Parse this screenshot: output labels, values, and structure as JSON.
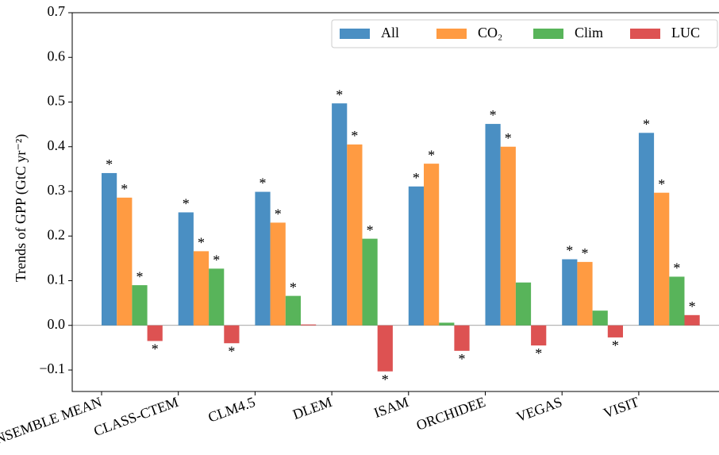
{
  "chart_data": {
    "type": "bar",
    "ylabel": "Trends of GPP (GtC yr⁻²)",
    "categories": [
      "ENSEMBLE MEAN",
      "CLASS-CTEM",
      "CLM4.5",
      "DLEM",
      "ISAM",
      "ORCHIDEE",
      "VEGAS",
      "VISIT"
    ],
    "series": [
      {
        "name": "All",
        "color": "#4a8fc3",
        "values": [
          0.341,
          0.253,
          0.299,
          0.497,
          0.311,
          0.451,
          0.148,
          0.431
        ],
        "labels": [
          "*",
          "*",
          "*",
          "*",
          "*",
          "*",
          "*",
          "*"
        ]
      },
      {
        "name": "CO₂",
        "color": "#ff9b42",
        "values": [
          0.286,
          0.166,
          0.23,
          0.405,
          0.362,
          0.4,
          0.142,
          0.297
        ],
        "labels": [
          "*",
          "*",
          "*",
          "*",
          "*",
          "*",
          "*",
          "*"
        ]
      },
      {
        "name": "Clim",
        "color": "#58b45a",
        "values": [
          0.09,
          0.127,
          0.066,
          0.194,
          0.006,
          0.096,
          0.033,
          0.109
        ],
        "labels": [
          "*",
          "*",
          "*",
          "*",
          null,
          null,
          null,
          "*"
        ]
      },
      {
        "name": "LUC",
        "color": "#dd5252",
        "values": [
          -0.035,
          -0.04,
          0.002,
          -0.103,
          -0.057,
          -0.045,
          -0.027,
          0.023
        ],
        "labels": [
          "*",
          "*",
          null,
          "*",
          "*",
          "*",
          "*",
          "*"
        ]
      }
    ],
    "ylim": [
      -0.148,
      0.7
    ],
    "yticks": [
      {
        "value": -0.1,
        "label": "−0.1"
      },
      {
        "value": 0,
        "label": "0.0"
      },
      0.1,
      0.2,
      0.3,
      0.4,
      0.5,
      0.6,
      0.7
    ],
    "zero_line": true,
    "legend": "upper right"
  }
}
